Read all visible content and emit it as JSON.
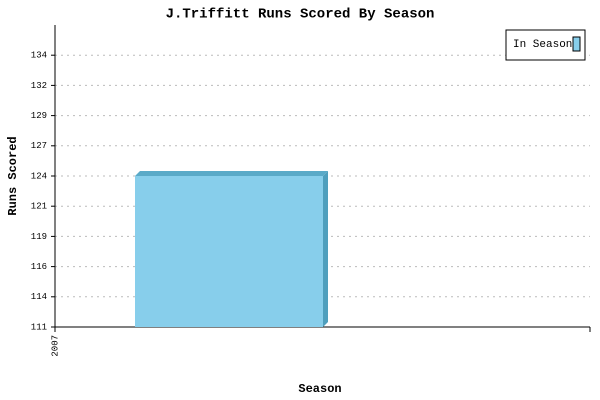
{
  "chart_data": {
    "type": "bar",
    "title": "J.Triffitt Runs Scored By Season",
    "x_label": "Season",
    "y_label": "Runs Scored",
    "categories": [
      "2007"
    ],
    "series": [
      {
        "name": "In Season",
        "color": "#87ceeb",
        "values": [
          124
        ]
      }
    ],
    "ylim": [
      111,
      137
    ],
    "yticks": [
      111,
      {
        "value": 113.6,
        "label": "114"
      },
      {
        "value": 116.2,
        "label": "116"
      },
      {
        "value": 118.8,
        "label": "119"
      },
      {
        "value": 121.4,
        "label": "121"
      },
      124,
      {
        "value": 126.6,
        "label": "127"
      },
      {
        "value": 129.2,
        "label": "129"
      },
      {
        "value": 131.8,
        "label": "132"
      },
      {
        "value": 134.4,
        "label": "134"
      }
    ],
    "grid": true,
    "legend": "upper right"
  }
}
